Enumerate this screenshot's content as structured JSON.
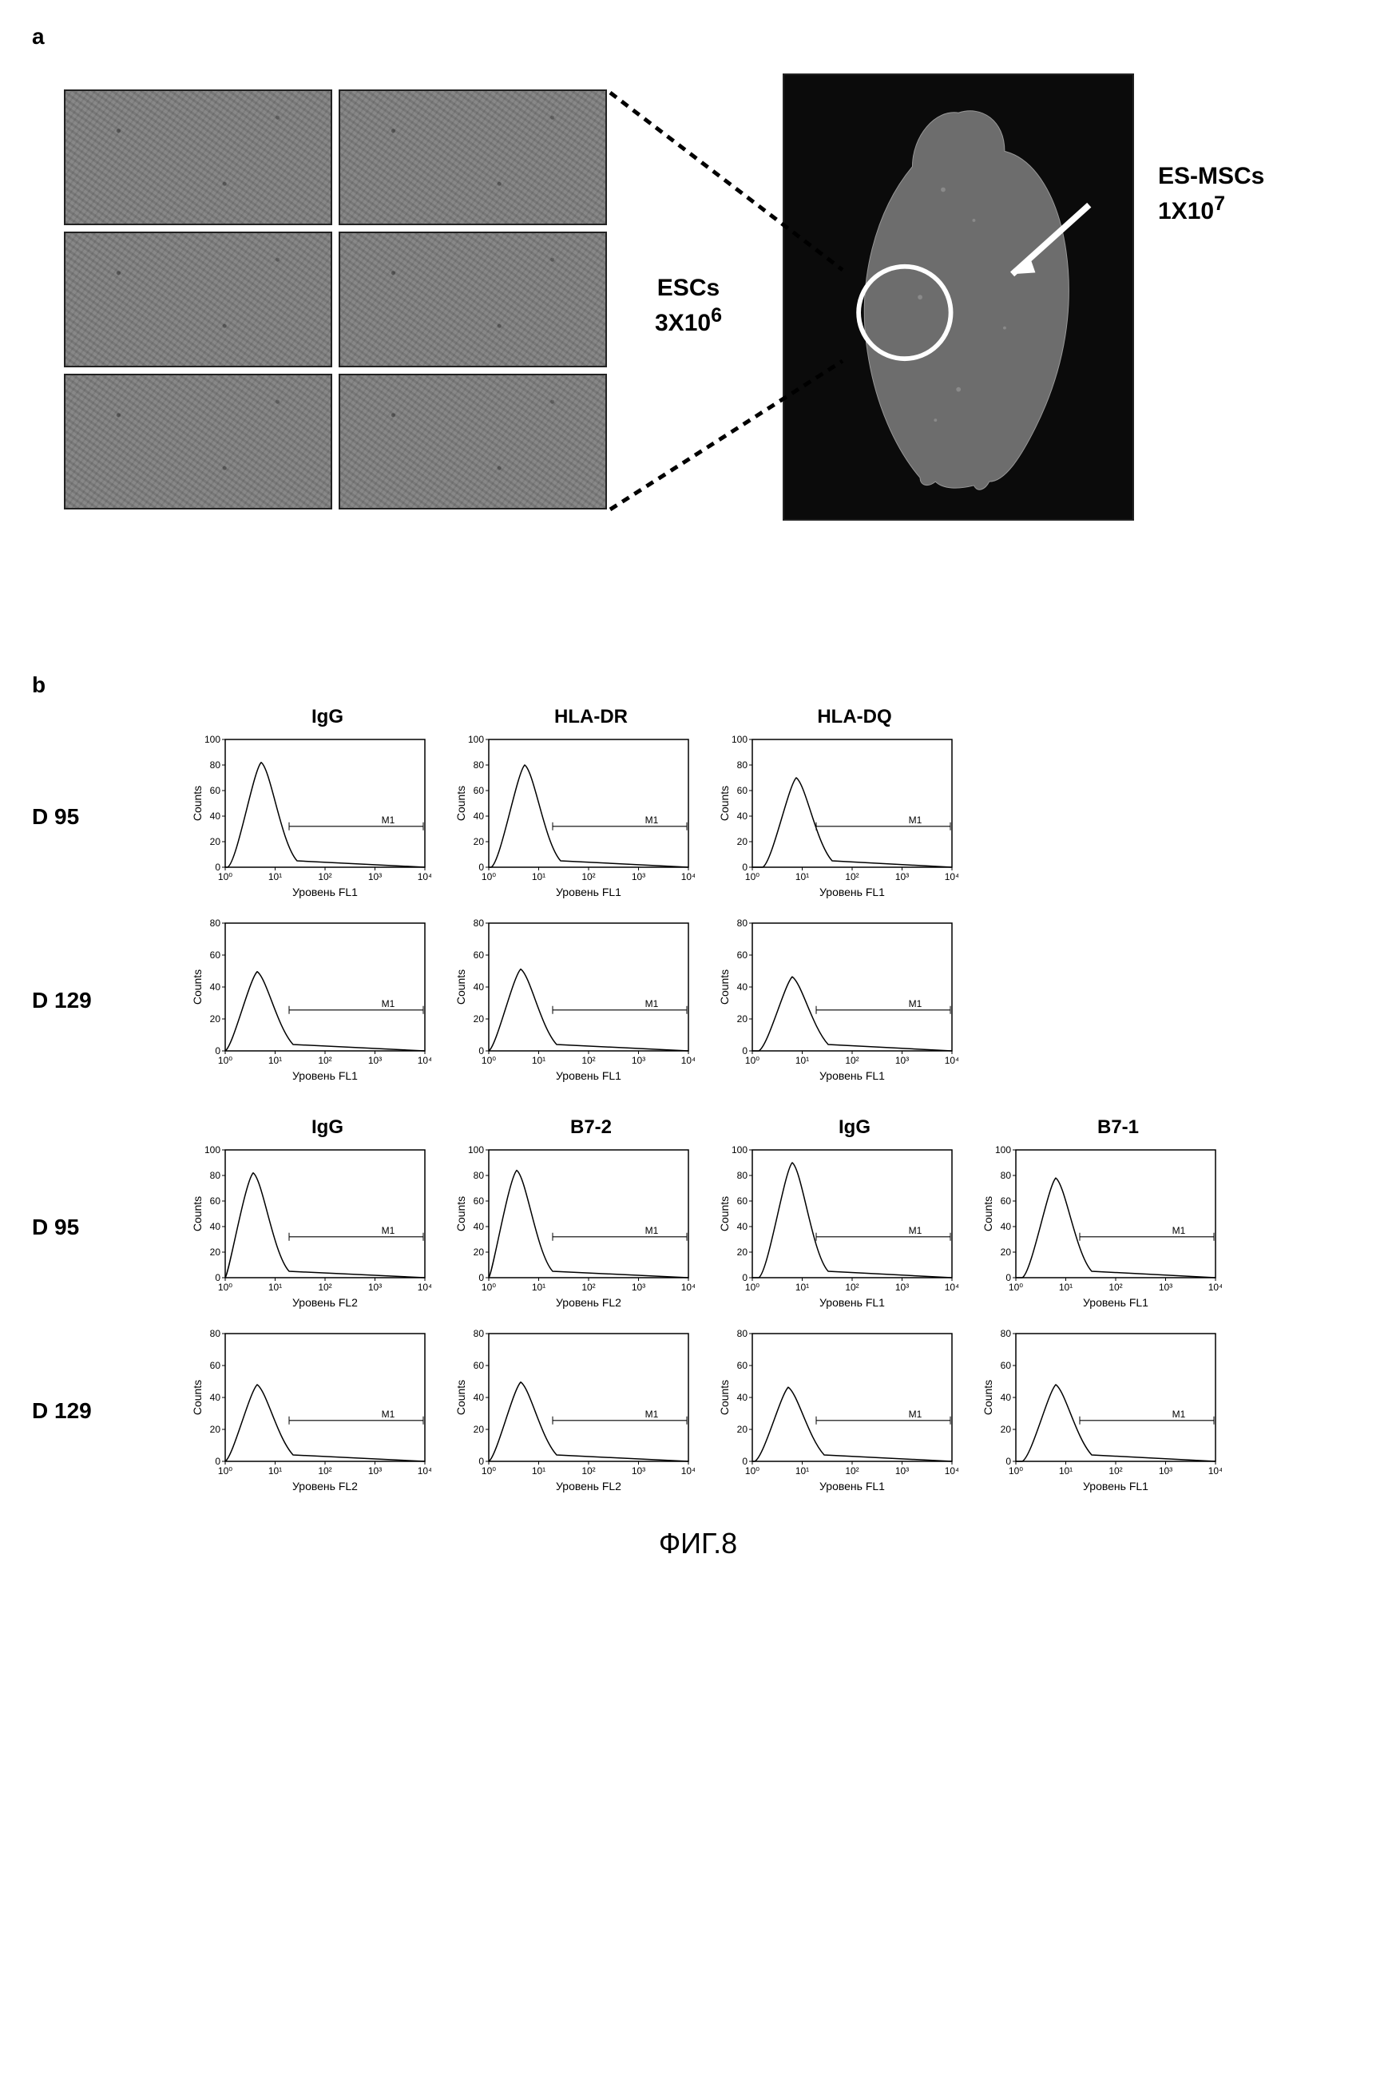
{
  "figure_label": "ФИГ.8",
  "panel_a": {
    "label": "a",
    "escs_label_line1": "ESCs",
    "escs_label_line2": "3X10",
    "escs_sup": "6",
    "esmscs_label_line1": "ES-MSCs",
    "esmscs_label_line2": "1X10",
    "esmscs_sup": "7",
    "mouse_fill": "#6d6d6d",
    "mouse_bg": "#0b0b0b",
    "circle_stroke": "#ffffff",
    "histology_bg": "#888888"
  },
  "panel_b": {
    "label": "b",
    "row_labels_top": [
      "D 95",
      "D 129"
    ],
    "row_labels_bottom": [
      "D 95",
      "D 129"
    ],
    "col_headers_top": [
      "IgG",
      "HLA-DR",
      "HLA-DQ"
    ],
    "col_headers_bottom": [
      "IgG",
      "B7-2",
      "IgG",
      "B7-1"
    ],
    "y_axis_label": "Counts",
    "x_axis_label": "Уровень FL1",
    "x_axis_label_fl2": "Уровень FL2",
    "marker_label": "M1",
    "x_ticks": [
      "10⁰",
      "10¹",
      "10²",
      "10³",
      "10⁴"
    ],
    "y_ticks_A": [
      "0",
      "20",
      "40",
      "60",
      "80",
      "100"
    ],
    "y_ticks_B": [
      "0",
      "20",
      "40",
      "60",
      "80"
    ],
    "plot_style": {
      "bg": "#ffffff",
      "axis_color": "#000000",
      "line_width": 1.5,
      "peak_fill": "none"
    },
    "top_grid": [
      {
        "row": "D 95",
        "plots": [
          {
            "peak_x": 0.18,
            "peak_h": 0.82,
            "yticks": "A",
            "xl": "FL1"
          },
          {
            "peak_x": 0.18,
            "peak_h": 0.8,
            "yticks": "A",
            "xl": "FL1"
          },
          {
            "peak_x": 0.22,
            "peak_h": 0.7,
            "yticks": "A",
            "xl": "FL1"
          }
        ]
      },
      {
        "row": "D 129",
        "plots": [
          {
            "peak_x": 0.16,
            "peak_h": 0.62,
            "yticks": "B",
            "xl": "FL1"
          },
          {
            "peak_x": 0.16,
            "peak_h": 0.64,
            "yticks": "B",
            "xl": "FL1"
          },
          {
            "peak_x": 0.2,
            "peak_h": 0.58,
            "yticks": "B",
            "xl": "FL1"
          }
        ]
      }
    ],
    "bottom_grid": [
      {
        "row": "D 95",
        "plots": [
          {
            "peak_x": 0.14,
            "peak_h": 0.82,
            "yticks": "A",
            "xl": "FL2"
          },
          {
            "peak_x": 0.14,
            "peak_h": 0.84,
            "yticks": "A",
            "xl": "FL2"
          },
          {
            "peak_x": 0.2,
            "peak_h": 0.9,
            "yticks": "A",
            "xl": "FL1"
          },
          {
            "peak_x": 0.2,
            "peak_h": 0.78,
            "yticks": "A",
            "xl": "FL1"
          }
        ]
      },
      {
        "row": "D 129",
        "plots": [
          {
            "peak_x": 0.16,
            "peak_h": 0.6,
            "yticks": "B",
            "xl": "FL2"
          },
          {
            "peak_x": 0.16,
            "peak_h": 0.62,
            "yticks": "B",
            "xl": "FL2"
          },
          {
            "peak_x": 0.18,
            "peak_h": 0.58,
            "yticks": "B",
            "xl": "FL1"
          },
          {
            "peak_x": 0.2,
            "peak_h": 0.6,
            "yticks": "B",
            "xl": "FL1"
          }
        ]
      }
    ]
  }
}
